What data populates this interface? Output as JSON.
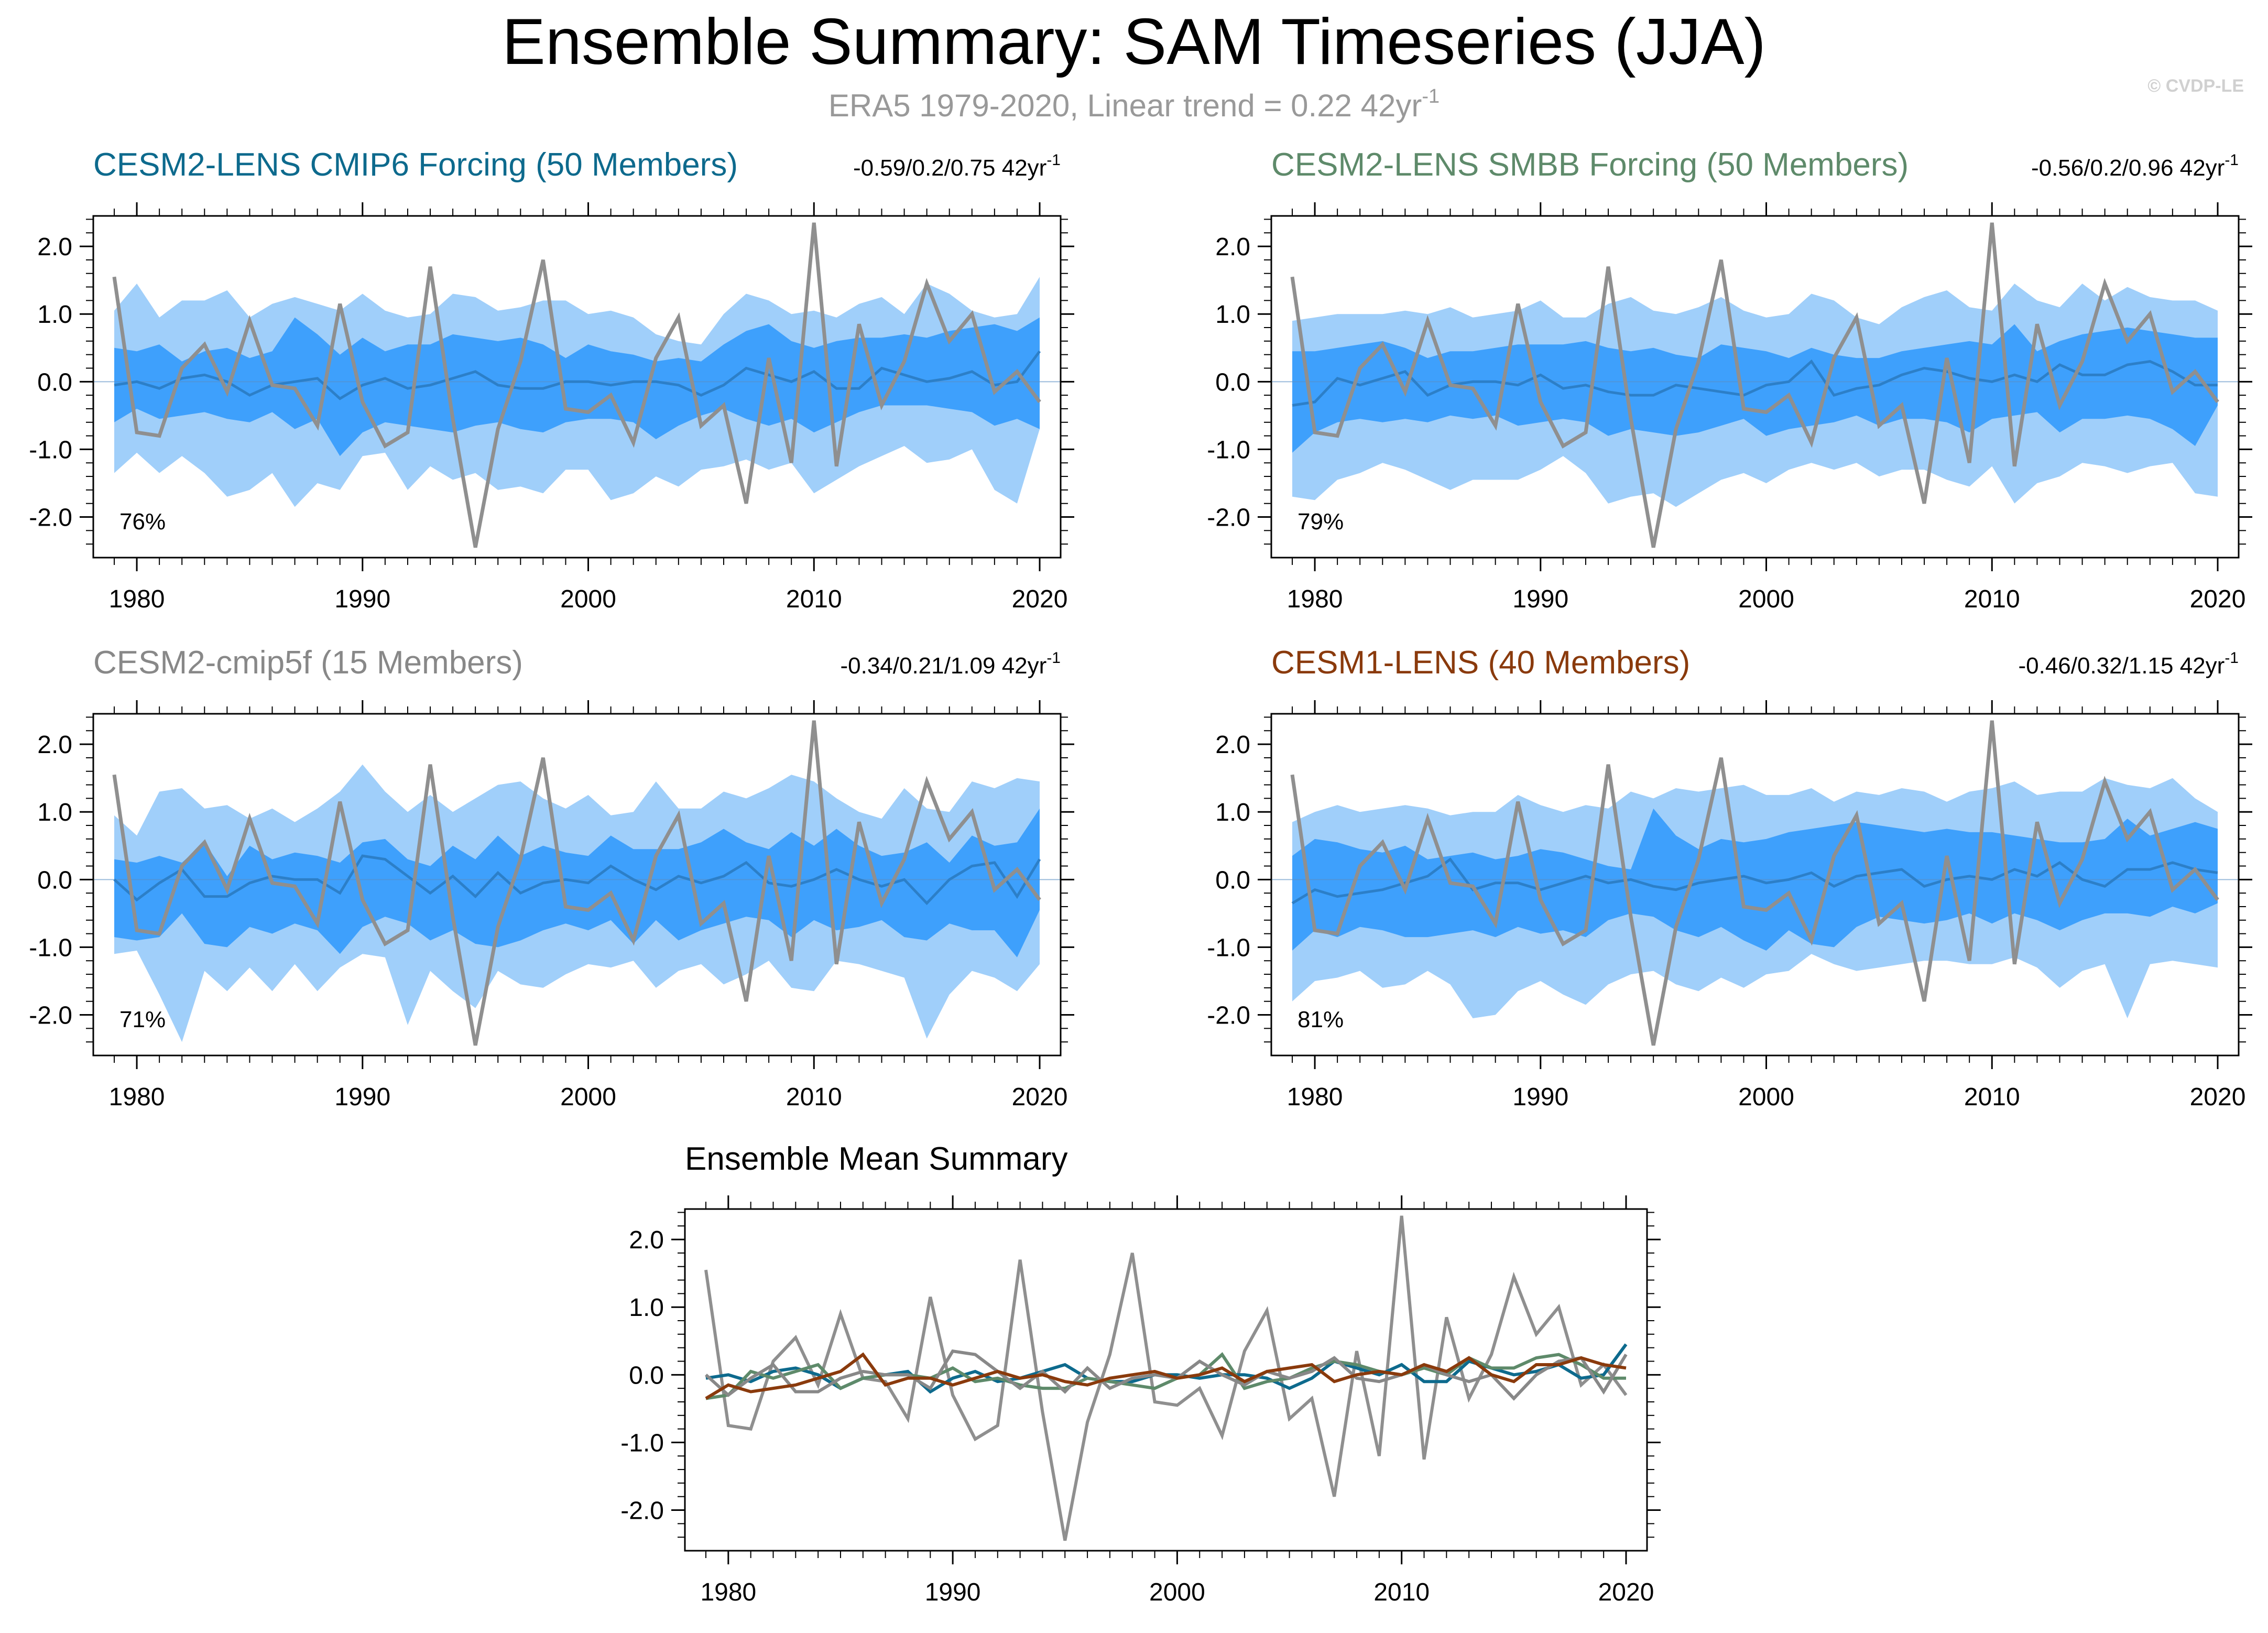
{
  "figure": {
    "title": "Ensemble Summary: SAM Timeseries (JJA)",
    "subtitle_prefix": "ERA5 1979-2020, Linear trend = 0.22 42yr",
    "subtitle_sup": "-1",
    "credit": "© CVDP-LE"
  },
  "colors": {
    "outer_band": "#a0cffa",
    "inner_band": "#3ea0fc",
    "ens_mean_line": "#2c7fc8",
    "obs_line": "#8f8f8f",
    "cmip6": "#0d6a8d",
    "smbb": "#5e8a6a",
    "cmip5f": "#888888",
    "cesm1": "#8a3a0c"
  },
  "chart_data": [
    {
      "id": "cesm2-cmip6",
      "type": "area",
      "title": "CESM2-LENS CMIP6 Forcing (50 Members)",
      "stat": "-0.59/0.2/0.75 42yr",
      "stat_sup": "-1",
      "percent": "76%",
      "color": "#0d6a8d",
      "x_range": [
        1979,
        2020
      ],
      "ylim": [
        -2.6,
        2.45
      ],
      "x_ticks": [
        "1980",
        "1990",
        "2000",
        "2010",
        "2020"
      ],
      "y_ticks": [
        "2.0",
        "1.0",
        "0.0",
        "-1.0",
        "-2.0"
      ],
      "outer_hi": [
        1.05,
        1.45,
        0.95,
        1.2,
        1.2,
        1.35,
        0.95,
        1.15,
        1.25,
        1.15,
        1.05,
        1.3,
        1.05,
        0.95,
        1.0,
        1.3,
        1.25,
        1.05,
        1.1,
        1.2,
        1.2,
        1.0,
        1.05,
        0.95,
        0.7,
        0.6,
        0.55,
        1.0,
        1.3,
        1.2,
        1.0,
        1.05,
        0.95,
        1.15,
        1.25,
        1.0,
        1.45,
        1.3,
        1.05,
        0.95,
        1.0,
        1.55
      ],
      "inner_hi": [
        0.5,
        0.45,
        0.55,
        0.3,
        0.45,
        0.5,
        0.35,
        0.45,
        0.95,
        0.7,
        0.4,
        0.65,
        0.45,
        0.55,
        0.55,
        0.7,
        0.65,
        0.6,
        0.65,
        0.55,
        0.35,
        0.55,
        0.45,
        0.4,
        0.3,
        0.35,
        0.3,
        0.55,
        0.75,
        0.85,
        0.6,
        0.5,
        0.6,
        0.65,
        0.65,
        0.7,
        0.65,
        0.75,
        0.8,
        0.85,
        0.75,
        0.95
      ],
      "inner_lo": [
        -0.6,
        -0.4,
        -0.55,
        -0.5,
        -0.45,
        -0.55,
        -0.6,
        -0.45,
        -0.7,
        -0.55,
        -1.1,
        -0.75,
        -0.6,
        -0.65,
        -0.7,
        -0.75,
        -0.65,
        -0.6,
        -0.7,
        -0.75,
        -0.6,
        -0.55,
        -0.55,
        -0.6,
        -0.85,
        -0.65,
        -0.5,
        -0.4,
        -0.55,
        -0.65,
        -0.55,
        -0.75,
        -0.6,
        -0.45,
        -0.35,
        -0.35,
        -0.35,
        -0.4,
        -0.45,
        -0.65,
        -0.55,
        -0.7
      ],
      "outer_lo": [
        -1.35,
        -1.05,
        -1.35,
        -1.1,
        -1.35,
        -1.7,
        -1.6,
        -1.35,
        -1.85,
        -1.5,
        -1.6,
        -1.1,
        -1.05,
        -1.6,
        -1.25,
        -1.45,
        -1.35,
        -1.6,
        -1.55,
        -1.65,
        -1.3,
        -1.3,
        -1.75,
        -1.65,
        -1.4,
        -1.55,
        -1.3,
        -1.25,
        -1.15,
        -1.3,
        -1.2,
        -1.65,
        -1.45,
        -1.25,
        -1.1,
        -0.95,
        -1.2,
        -1.15,
        -1.0,
        -1.6,
        -1.8,
        -0.7
      ],
      "ens_mean": [
        -0.05,
        0.0,
        -0.1,
        0.05,
        0.1,
        0.0,
        -0.2,
        -0.05,
        0.0,
        0.05,
        -0.25,
        -0.05,
        0.05,
        -0.1,
        -0.05,
        0.05,
        0.15,
        -0.05,
        -0.1,
        -0.1,
        0.0,
        0.0,
        -0.05,
        0.0,
        0.0,
        -0.05,
        -0.2,
        -0.05,
        0.2,
        0.1,
        0.0,
        0.15,
        -0.1,
        -0.1,
        0.2,
        0.1,
        0.0,
        0.05,
        0.15,
        -0.05,
        0.0,
        0.45
      ]
    },
    {
      "id": "cesm2-smbb",
      "type": "area",
      "title": "CESM2-LENS SMBB Forcing (50 Members)",
      "stat": "-0.56/0.2/0.96 42yr",
      "stat_sup": "-1",
      "percent": "79%",
      "color": "#5e8a6a",
      "x_range": [
        1979,
        2020
      ],
      "ylim": [
        -2.6,
        2.45
      ],
      "x_ticks": [
        "1980",
        "1990",
        "2000",
        "2010",
        "2020"
      ],
      "y_ticks": [
        "2.0",
        "1.0",
        "0.0",
        "-1.0",
        "-2.0"
      ],
      "outer_hi": [
        0.9,
        0.95,
        1.0,
        1.0,
        1.0,
        1.05,
        1.0,
        1.1,
        0.95,
        1.0,
        1.05,
        1.2,
        0.95,
        0.95,
        1.15,
        1.25,
        1.05,
        1.0,
        1.1,
        1.25,
        1.05,
        0.95,
        1.0,
        1.3,
        1.2,
        0.95,
        0.85,
        1.1,
        1.25,
        1.35,
        1.1,
        1.05,
        1.45,
        1.2,
        1.1,
        1.45,
        1.2,
        1.4,
        1.25,
        1.2,
        1.2,
        1.05
      ],
      "inner_hi": [
        0.45,
        0.45,
        0.5,
        0.55,
        0.6,
        0.5,
        0.35,
        0.45,
        0.45,
        0.5,
        0.55,
        0.55,
        0.55,
        0.6,
        0.5,
        0.45,
        0.5,
        0.4,
        0.35,
        0.55,
        0.5,
        0.45,
        0.35,
        0.5,
        0.4,
        0.35,
        0.35,
        0.45,
        0.5,
        0.55,
        0.6,
        0.55,
        0.85,
        0.45,
        0.6,
        0.7,
        0.75,
        0.8,
        0.75,
        0.7,
        0.65,
        0.65
      ],
      "inner_lo": [
        -1.05,
        -0.75,
        -0.6,
        -0.55,
        -0.6,
        -0.55,
        -0.6,
        -0.5,
        -0.55,
        -0.5,
        -0.65,
        -0.6,
        -0.55,
        -0.6,
        -0.8,
        -0.7,
        -0.75,
        -0.8,
        -0.75,
        -0.65,
        -0.55,
        -0.8,
        -0.7,
        -0.65,
        -0.6,
        -0.5,
        -0.65,
        -0.55,
        -0.55,
        -0.6,
        -0.75,
        -0.55,
        -0.5,
        -0.45,
        -0.75,
        -0.55,
        -0.55,
        -0.5,
        -0.55,
        -0.7,
        -0.95,
        -0.35
      ],
      "outer_lo": [
        -1.7,
        -1.75,
        -1.45,
        -1.35,
        -1.2,
        -1.3,
        -1.45,
        -1.6,
        -1.45,
        -1.45,
        -1.45,
        -1.3,
        -1.1,
        -1.35,
        -1.8,
        -1.7,
        -1.65,
        -1.85,
        -1.65,
        -1.45,
        -1.35,
        -1.5,
        -1.3,
        -1.2,
        -1.3,
        -1.2,
        -1.4,
        -1.3,
        -1.3,
        -1.45,
        -1.55,
        -1.25,
        -1.8,
        -1.5,
        -1.4,
        -1.2,
        -1.25,
        -1.35,
        -1.25,
        -1.2,
        -1.65,
        -1.7
      ],
      "ens_mean": [
        -0.35,
        -0.3,
        0.05,
        -0.05,
        0.05,
        0.15,
        -0.2,
        -0.05,
        0.0,
        0.0,
        -0.05,
        0.1,
        -0.1,
        -0.05,
        -0.15,
        -0.2,
        -0.2,
        -0.05,
        -0.1,
        -0.15,
        -0.2,
        -0.05,
        0.0,
        0.3,
        -0.2,
        -0.1,
        -0.05,
        0.1,
        0.2,
        0.15,
        0.05,
        0.0,
        0.1,
        0.0,
        0.25,
        0.1,
        0.1,
        0.25,
        0.3,
        0.15,
        -0.05,
        -0.05
      ]
    },
    {
      "id": "cesm2-cmip5f",
      "type": "area",
      "title": "CESM2-cmip5f (15 Members)",
      "stat": "-0.34/0.21/1.09 42yr",
      "stat_sup": "-1",
      "percent": "71%",
      "color": "#888888",
      "x_range": [
        1979,
        2020
      ],
      "ylim": [
        -2.6,
        2.45
      ],
      "x_ticks": [
        "1980",
        "1990",
        "2000",
        "2010",
        "2020"
      ],
      "y_ticks": [
        "2.0",
        "1.0",
        "0.0",
        "-1.0",
        "-2.0"
      ],
      "outer_hi": [
        0.95,
        0.65,
        1.3,
        1.35,
        1.05,
        1.1,
        0.9,
        1.05,
        0.85,
        1.05,
        1.3,
        1.7,
        1.3,
        1.0,
        1.25,
        1.0,
        1.2,
        1.4,
        1.45,
        1.2,
        1.05,
        1.25,
        0.95,
        1.0,
        1.45,
        1.05,
        1.05,
        1.3,
        1.2,
        1.35,
        1.55,
        1.45,
        1.2,
        1.0,
        0.9,
        1.35,
        1.05,
        1.0,
        1.45,
        1.35,
        1.5,
        1.45
      ],
      "inner_hi": [
        0.3,
        0.25,
        0.35,
        0.25,
        0.55,
        0.05,
        0.5,
        0.3,
        0.4,
        0.35,
        0.25,
        0.55,
        0.6,
        0.3,
        0.2,
        0.5,
        0.3,
        0.65,
        0.35,
        0.5,
        0.4,
        0.35,
        0.65,
        0.45,
        0.45,
        0.45,
        0.55,
        0.75,
        0.55,
        0.45,
        0.7,
        0.5,
        0.75,
        0.5,
        0.35,
        0.4,
        0.55,
        0.25,
        0.65,
        0.5,
        0.55,
        1.05
      ],
      "inner_lo": [
        -0.85,
        -0.9,
        -0.85,
        -0.5,
        -0.95,
        -1.0,
        -0.7,
        -0.8,
        -0.65,
        -0.75,
        -1.1,
        -0.7,
        -0.55,
        -0.65,
        -0.9,
        -0.75,
        -0.95,
        -1.0,
        -0.9,
        -0.75,
        -0.65,
        -0.75,
        -0.6,
        -0.95,
        -0.6,
        -0.9,
        -0.75,
        -0.65,
        -0.55,
        -0.6,
        -0.85,
        -0.6,
        -0.75,
        -0.7,
        -0.6,
        -0.85,
        -0.9,
        -0.65,
        -0.75,
        -0.75,
        -1.15,
        -0.45
      ],
      "outer_lo": [
        -1.1,
        -1.05,
        -1.7,
        -2.4,
        -1.35,
        -1.65,
        -1.3,
        -1.65,
        -1.25,
        -1.65,
        -1.3,
        -1.1,
        -1.15,
        -2.15,
        -1.35,
        -1.65,
        -1.9,
        -1.35,
        -1.55,
        -1.6,
        -1.4,
        -1.25,
        -1.3,
        -1.2,
        -1.6,
        -1.35,
        -1.25,
        -1.55,
        -1.4,
        -1.2,
        -1.6,
        -1.65,
        -1.2,
        -1.25,
        -1.35,
        -1.45,
        -2.35,
        -1.7,
        -1.35,
        -1.45,
        -1.65,
        -1.25
      ],
      "ens_mean": [
        0.0,
        -0.3,
        -0.05,
        0.15,
        -0.25,
        -0.25,
        -0.05,
        0.05,
        0.0,
        0.0,
        -0.2,
        0.35,
        0.3,
        0.05,
        -0.2,
        0.05,
        -0.25,
        0.1,
        -0.2,
        -0.05,
        0.0,
        -0.05,
        0.2,
        0.0,
        -0.15,
        0.05,
        -0.05,
        0.05,
        0.25,
        -0.05,
        -0.1,
        0.0,
        0.15,
        0.0,
        -0.1,
        0.0,
        -0.35,
        0.0,
        0.2,
        0.25,
        -0.25,
        0.3
      ]
    },
    {
      "id": "cesm1-lens",
      "type": "area",
      "title": "CESM1-LENS (40 Members)",
      "stat": "-0.46/0.32/1.15 42yr",
      "stat_sup": "-1",
      "percent": "81%",
      "color": "#8a3a0c",
      "x_range": [
        1979,
        2020
      ],
      "ylim": [
        -2.6,
        2.45
      ],
      "x_ticks": [
        "1980",
        "1990",
        "2000",
        "2010",
        "2020"
      ],
      "y_ticks": [
        "2.0",
        "1.0",
        "0.0",
        "-1.0",
        "-2.0"
      ],
      "outer_hi": [
        0.85,
        1.0,
        1.1,
        1.0,
        1.05,
        1.1,
        1.05,
        0.95,
        1.0,
        1.0,
        1.25,
        1.1,
        1.0,
        1.1,
        1.05,
        1.3,
        1.2,
        1.35,
        1.3,
        1.35,
        1.4,
        1.25,
        1.25,
        1.35,
        1.15,
        1.3,
        1.25,
        1.35,
        1.3,
        1.15,
        1.3,
        1.35,
        1.45,
        1.25,
        1.3,
        1.3,
        1.5,
        1.4,
        1.35,
        1.5,
        1.2,
        1.0
      ],
      "inner_hi": [
        0.35,
        0.6,
        0.55,
        0.45,
        0.4,
        0.5,
        0.3,
        0.35,
        0.4,
        0.3,
        0.35,
        0.45,
        0.4,
        0.3,
        0.2,
        0.15,
        1.05,
        0.65,
        0.45,
        0.6,
        0.55,
        0.6,
        0.7,
        0.75,
        0.8,
        0.85,
        0.8,
        0.75,
        0.7,
        0.75,
        0.7,
        0.7,
        0.65,
        0.6,
        0.55,
        0.55,
        0.6,
        0.9,
        0.65,
        0.75,
        0.85,
        0.75
      ],
      "inner_lo": [
        -1.05,
        -0.75,
        -0.85,
        -0.7,
        -0.75,
        -0.85,
        -0.85,
        -0.8,
        -0.75,
        -0.85,
        -0.7,
        -0.8,
        -0.75,
        -0.85,
        -0.6,
        -0.5,
        -0.55,
        -0.75,
        -0.85,
        -0.7,
        -0.9,
        -1.05,
        -0.75,
        -0.95,
        -1.0,
        -0.7,
        -0.55,
        -0.6,
        -0.65,
        -0.6,
        -0.5,
        -0.65,
        -0.5,
        -0.6,
        -0.75,
        -0.6,
        -0.5,
        -0.5,
        -0.55,
        -0.4,
        -0.5,
        -0.35
      ],
      "outer_lo": [
        -1.8,
        -1.5,
        -1.45,
        -1.35,
        -1.6,
        -1.55,
        -1.35,
        -1.55,
        -2.05,
        -2.0,
        -1.65,
        -1.5,
        -1.7,
        -1.85,
        -1.55,
        -1.4,
        -1.35,
        -1.55,
        -1.65,
        -1.45,
        -1.6,
        -1.4,
        -1.35,
        -1.1,
        -1.25,
        -1.35,
        -1.3,
        -1.25,
        -1.2,
        -1.2,
        -1.25,
        -1.25,
        -1.15,
        -1.3,
        -1.6,
        -1.35,
        -1.25,
        -2.05,
        -1.25,
        -1.2,
        -1.25,
        -1.3
      ],
      "ens_mean": [
        -0.35,
        -0.15,
        -0.25,
        -0.2,
        -0.15,
        -0.05,
        0.05,
        0.3,
        -0.15,
        -0.05,
        -0.05,
        -0.15,
        -0.05,
        0.05,
        -0.05,
        0.0,
        -0.1,
        -0.15,
        -0.05,
        0.0,
        0.05,
        -0.05,
        0.0,
        0.1,
        -0.1,
        0.05,
        0.1,
        0.15,
        -0.1,
        0.0,
        0.05,
        0.0,
        0.15,
        0.05,
        0.25,
        0.0,
        -0.1,
        0.15,
        0.15,
        0.25,
        0.15,
        0.1
      ]
    },
    {
      "id": "ensemble-mean-summary",
      "type": "line",
      "title": "Ensemble Mean Summary",
      "x_range": [
        1979,
        2020
      ],
      "ylim": [
        -2.6,
        2.45
      ],
      "x_ticks": [
        "1980",
        "1990",
        "2000",
        "2010",
        "2020"
      ],
      "y_ticks": [
        "2.0",
        "1.0",
        "0.0",
        "-1.0",
        "-2.0"
      ],
      "series": [
        {
          "name": "CESM2-LENS CMIP6 Forcing",
          "color": "#0d6a8d",
          "ref": "cesm2-cmip6"
        },
        {
          "name": "CESM2-LENS SMBB Forcing",
          "color": "#5e8a6a",
          "ref": "cesm2-smbb"
        },
        {
          "name": "CESM2-cmip5f",
          "color": "#888888",
          "ref": "cesm2-cmip5f"
        },
        {
          "name": "CESM1-LENS",
          "color": "#8a3a0c",
          "ref": "cesm1-lens"
        }
      ]
    }
  ],
  "observations": {
    "name": "ERA5",
    "years": [
      1979,
      1980,
      1981,
      1982,
      1983,
      1984,
      1985,
      1986,
      1987,
      1988,
      1989,
      1990,
      1991,
      1992,
      1993,
      1994,
      1995,
      1996,
      1997,
      1998,
      1999,
      2000,
      2001,
      2002,
      2003,
      2004,
      2005,
      2006,
      2007,
      2008,
      2009,
      2010,
      2011,
      2012,
      2013,
      2014,
      2015,
      2016,
      2017,
      2018,
      2019,
      2020
    ],
    "values": [
      1.55,
      -0.75,
      -0.8,
      0.2,
      0.55,
      -0.15,
      0.9,
      -0.05,
      -0.1,
      -0.65,
      1.15,
      -0.3,
      -0.95,
      -0.75,
      1.7,
      -0.55,
      -2.45,
      -0.7,
      0.3,
      1.8,
      -0.4,
      -0.45,
      -0.2,
      -0.9,
      0.35,
      0.95,
      -0.65,
      -0.35,
      -1.8,
      0.35,
      -1.2,
      2.35,
      -1.25,
      0.85,
      -0.35,
      0.3,
      1.45,
      0.6,
      1.0,
      -0.15,
      0.15,
      -0.3
    ]
  }
}
